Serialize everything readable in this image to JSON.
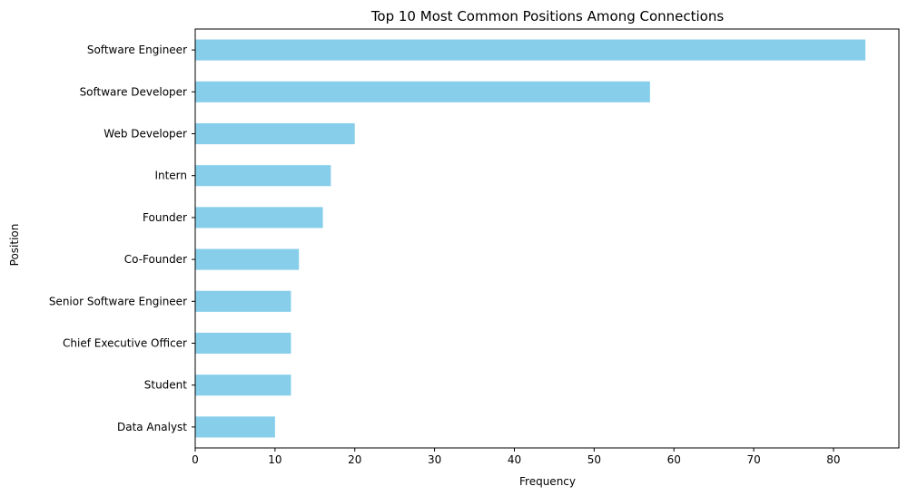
{
  "chart_data": {
    "type": "bar",
    "orientation": "horizontal",
    "title": "Top 10 Most Common Positions Among Connections",
    "xlabel": "Frequency",
    "ylabel": "Position",
    "categories": [
      "Software Engineer",
      "Software Developer",
      "Web Developer",
      "Intern",
      "Founder",
      "Co-Founder",
      "Senior Software Engineer",
      "Chief Executive Officer",
      "Student",
      "Data Analyst"
    ],
    "values": [
      84,
      57,
      20,
      17,
      16,
      13,
      12,
      12,
      12,
      10
    ],
    "xlim": [
      0,
      88.2
    ],
    "xticks": [
      0,
      10,
      20,
      30,
      40,
      50,
      60,
      70,
      80
    ],
    "bar_color": "#87ceeb",
    "grid": false,
    "legend": "none"
  }
}
